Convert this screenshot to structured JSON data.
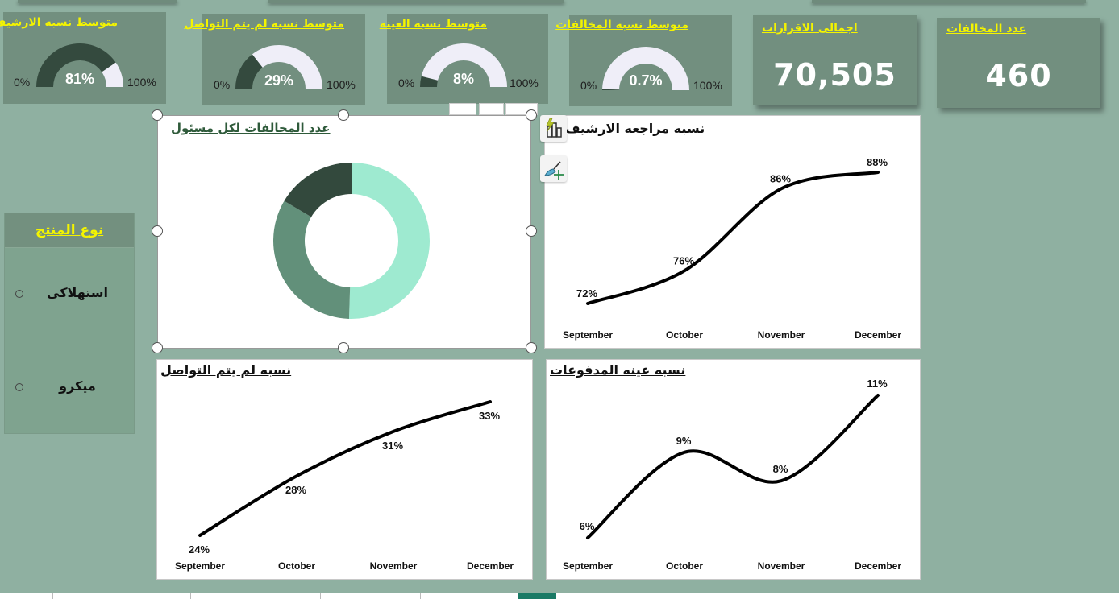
{
  "gauges": [
    {
      "title": "متوسط نسبه الارشيف",
      "value": 81,
      "value_label": "81%",
      "min_label": "0%",
      "max_label": "100%"
    },
    {
      "title": "متوسط نسبه لم يتم التواصل",
      "value": 29,
      "value_label": "29%",
      "min_label": "0%",
      "max_label": "100%"
    },
    {
      "title": "متوسط نسبه العينه",
      "value": 8,
      "value_label": "8%",
      "min_label": "0%",
      "max_label": "100%"
    },
    {
      "title": "متوسط نسبه المخالفات",
      "value": 0.7,
      "value_label": "0.7%",
      "min_label": "0%",
      "max_label": "100%"
    }
  ],
  "kpis": [
    {
      "title": "اجمالى الاقرارات",
      "value": "70,505"
    },
    {
      "title": "عدد المخالفات",
      "value": "460"
    }
  ],
  "slicer": {
    "title": "نوع المنتج",
    "items": [
      "استهلاكى",
      "ميكرو"
    ]
  },
  "colors": {
    "background": "#8fb0a1",
    "card": "#728f7f",
    "title_yellow": "#f4f400",
    "gauge_fill": "#344a3e",
    "gauge_empty": "#efeef8"
  },
  "chart_data": [
    {
      "type": "pie",
      "title": "عدد المخالفات لكل مسئول",
      "donut": true,
      "values": [
        50.5,
        33,
        16.5
      ],
      "colors": [
        "#9eead0",
        "#62907a",
        "#33493d"
      ]
    },
    {
      "type": "line",
      "title": "نسبه مراجعه الارشيف",
      "categories": [
        "September",
        "October",
        "November",
        "December"
      ],
      "values": [
        72,
        76,
        86,
        88
      ],
      "data_labels": [
        "72%",
        "76%",
        "86%",
        "88%"
      ],
      "ylim": [
        72,
        88
      ]
    },
    {
      "type": "line",
      "title": "نسبه لم يتم التواصل",
      "categories": [
        "September",
        "October",
        "November",
        "December"
      ],
      "values": [
        24,
        28,
        31,
        33
      ],
      "data_labels": [
        "24%",
        "28%",
        "31%",
        "33%"
      ],
      "ylim": [
        24,
        33
      ]
    },
    {
      "type": "line",
      "title": "نسبه عينه المدفوعات",
      "categories": [
        "September",
        "October",
        "November",
        "December"
      ],
      "values": [
        6,
        9,
        8,
        11
      ],
      "data_labels": [
        "6%",
        "9%",
        "8%",
        "11%"
      ],
      "ylim": [
        6,
        11
      ]
    }
  ]
}
